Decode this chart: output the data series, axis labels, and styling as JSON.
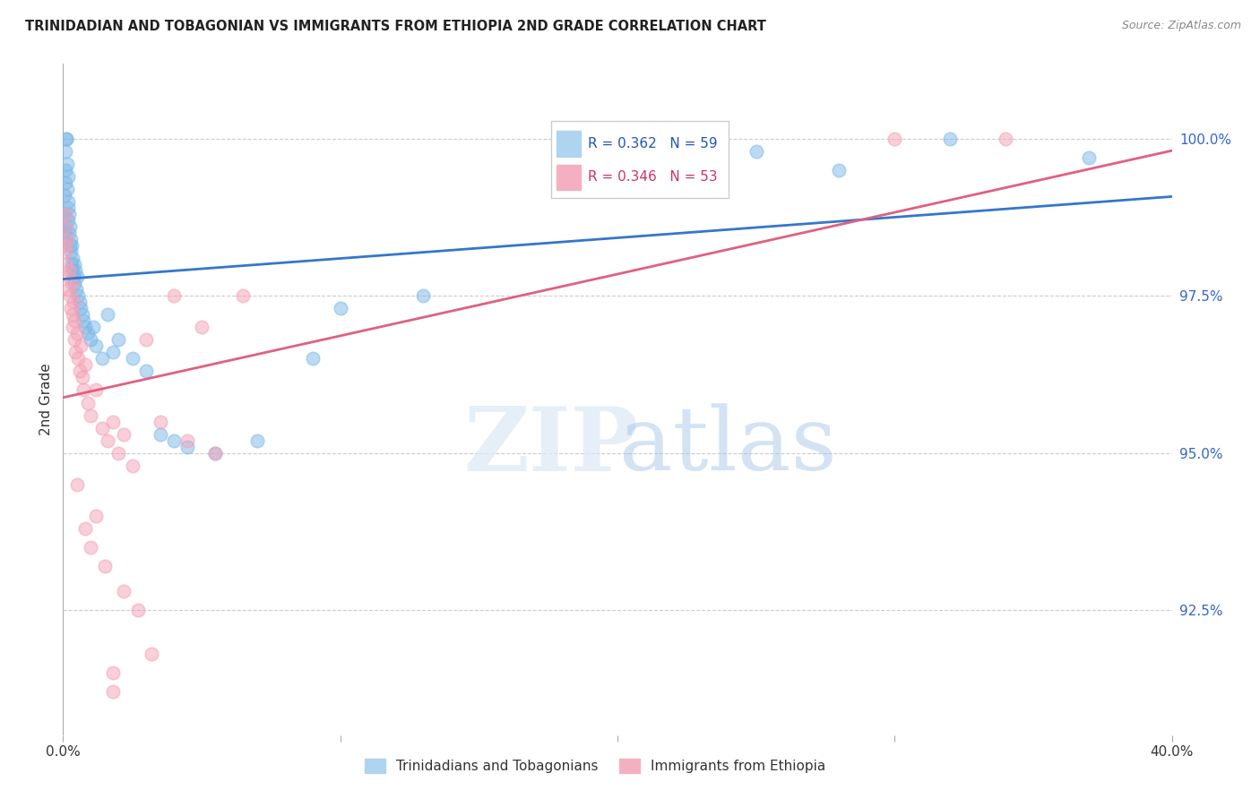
{
  "title": "TRINIDADIAN AND TOBAGONIAN VS IMMIGRANTS FROM ETHIOPIA 2ND GRADE CORRELATION CHART",
  "source": "Source: ZipAtlas.com",
  "ylabel": "2nd Grade",
  "ylabel_right_ticks": [
    100.0,
    97.5,
    95.0,
    92.5
  ],
  "ylabel_right_labels": [
    "100.0%",
    "97.5%",
    "95.0%",
    "92.5%"
  ],
  "x_min": 0.0,
  "x_max": 40.0,
  "y_min": 90.5,
  "y_max": 101.2,
  "legend_blue_r": "R = 0.362",
  "legend_blue_n": "N = 59",
  "legend_pink_r": "R = 0.346",
  "legend_pink_n": "N = 53",
  "blue_label": "Trinidadians and Tobagonians",
  "pink_label": "Immigrants from Ethiopia",
  "blue_color": "#7bb8e8",
  "pink_color": "#f4a0b5",
  "blue_line_color": "#3377cc",
  "pink_line_color": "#e06080",
  "blue_scatter_x": [
    0.05,
    0.05,
    0.05,
    0.08,
    0.08,
    0.1,
    0.1,
    0.12,
    0.12,
    0.15,
    0.15,
    0.18,
    0.18,
    0.2,
    0.2,
    0.22,
    0.22,
    0.25,
    0.25,
    0.28,
    0.28,
    0.3,
    0.3,
    0.33,
    0.35,
    0.38,
    0.4,
    0.42,
    0.45,
    0.48,
    0.5,
    0.55,
    0.6,
    0.65,
    0.7,
    0.75,
    0.8,
    0.9,
    1.0,
    1.1,
    1.2,
    1.4,
    1.6,
    1.8,
    2.0,
    2.5,
    3.0,
    3.5,
    4.0,
    4.5,
    5.5,
    7.0,
    9.0,
    10.0,
    13.0,
    25.0,
    28.0,
    32.0,
    37.0
  ],
  "blue_scatter_y": [
    98.5,
    98.8,
    99.1,
    98.6,
    99.3,
    99.5,
    99.8,
    100.0,
    100.0,
    99.2,
    99.6,
    98.9,
    99.4,
    98.7,
    99.0,
    98.5,
    98.8,
    98.3,
    98.6,
    98.2,
    98.4,
    98.0,
    98.3,
    97.9,
    98.1,
    97.8,
    98.0,
    97.7,
    97.9,
    97.6,
    97.8,
    97.5,
    97.4,
    97.3,
    97.2,
    97.1,
    97.0,
    96.9,
    96.8,
    97.0,
    96.7,
    96.5,
    97.2,
    96.6,
    96.8,
    96.5,
    96.3,
    95.3,
    95.2,
    95.1,
    95.0,
    95.2,
    96.5,
    97.3,
    97.5,
    99.8,
    99.5,
    100.0,
    99.7
  ],
  "pink_scatter_x": [
    0.05,
    0.08,
    0.1,
    0.1,
    0.12,
    0.15,
    0.18,
    0.2,
    0.22,
    0.25,
    0.28,
    0.3,
    0.33,
    0.35,
    0.38,
    0.4,
    0.42,
    0.45,
    0.5,
    0.55,
    0.6,
    0.65,
    0.7,
    0.75,
    0.8,
    0.9,
    1.0,
    1.2,
    1.4,
    1.6,
    1.8,
    2.0,
    2.2,
    2.5,
    3.0,
    3.5,
    4.0,
    4.5,
    5.0,
    5.5,
    6.5,
    0.5,
    0.8,
    1.0,
    1.2,
    1.5,
    2.2,
    2.7,
    3.2,
    30.0,
    34.0,
    1.8,
    1.8
  ],
  "pink_scatter_y": [
    98.3,
    98.6,
    98.2,
    98.8,
    98.0,
    98.4,
    97.8,
    97.6,
    97.9,
    97.5,
    97.3,
    97.7,
    97.2,
    97.0,
    97.4,
    96.8,
    97.1,
    96.6,
    96.9,
    96.5,
    96.3,
    96.7,
    96.2,
    96.0,
    96.4,
    95.8,
    95.6,
    96.0,
    95.4,
    95.2,
    95.5,
    95.0,
    95.3,
    94.8,
    96.8,
    95.5,
    97.5,
    95.2,
    97.0,
    95.0,
    97.5,
    94.5,
    93.8,
    93.5,
    94.0,
    93.2,
    92.8,
    92.5,
    91.8,
    100.0,
    100.0,
    91.5,
    91.2
  ]
}
